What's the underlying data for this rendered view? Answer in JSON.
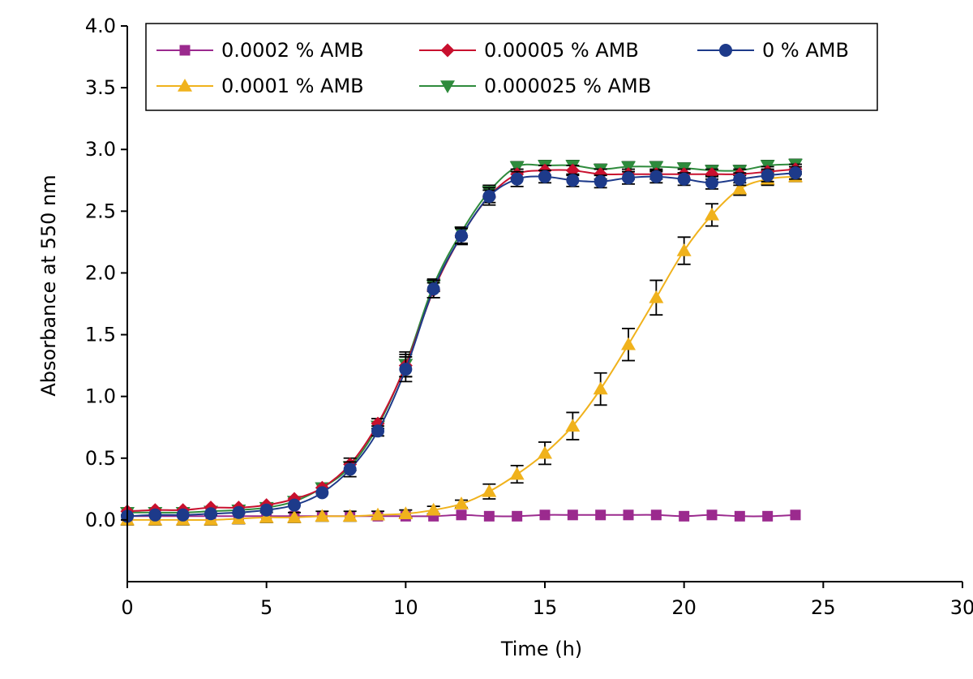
{
  "chart_data": {
    "type": "line",
    "xlabel": "Time (h)",
    "ylabel": "Absorbance at 550 nm",
    "xlim": [
      0,
      30
    ],
    "ylim": [
      -0.5,
      4.0
    ],
    "xticks": [
      "0",
      "5",
      "10",
      "15",
      "20",
      "25",
      "30"
    ],
    "yticks": [
      "0.0",
      "0.5",
      "1.0",
      "1.5",
      "2.0",
      "2.5",
      "3.0",
      "3.5",
      "4.0"
    ],
    "grid": false,
    "legend": "top",
    "x": [
      0,
      1,
      2,
      3,
      4,
      5,
      6,
      7,
      8,
      9,
      10,
      11,
      12,
      13,
      14,
      15,
      16,
      17,
      18,
      19,
      20,
      21,
      22,
      23,
      24
    ],
    "series": [
      {
        "name": "0.0002 % AMB",
        "color": "#9b2a8e",
        "marker": "square",
        "values": [
          0.03,
          0.03,
          0.03,
          0.03,
          0.03,
          0.03,
          0.03,
          0.03,
          0.03,
          0.03,
          0.03,
          0.03,
          0.04,
          0.03,
          0.03,
          0.04,
          0.04,
          0.04,
          0.04,
          0.04,
          0.03,
          0.04,
          0.03,
          0.03,
          0.04
        ],
        "errors": [
          0,
          0,
          0,
          0,
          0,
          0,
          0,
          0,
          0,
          0,
          0,
          0,
          0,
          0,
          0,
          0,
          0,
          0,
          0,
          0,
          0,
          0,
          0,
          0,
          0
        ]
      },
      {
        "name": "0.00005 % AMB",
        "color": "#c8102e",
        "marker": "diamond",
        "values": [
          0.07,
          0.08,
          0.08,
          0.1,
          0.1,
          0.12,
          0.17,
          0.26,
          0.45,
          0.78,
          1.25,
          1.86,
          2.3,
          2.62,
          2.8,
          2.83,
          2.83,
          2.8,
          2.8,
          2.8,
          2.8,
          2.8,
          2.8,
          2.82,
          2.84
        ],
        "errors": [
          0,
          0,
          0,
          0,
          0,
          0,
          0,
          0,
          0.05,
          0.04,
          0.09,
          0.06,
          0.07,
          0.05,
          0.04,
          0.04,
          0.04,
          0.04,
          0.04,
          0.04,
          0.04,
          0.04,
          0.04,
          0.04,
          0.04
        ]
      },
      {
        "name": "0 % AMB",
        "color": "#1d3a8a",
        "marker": "circle",
        "values": [
          0.03,
          0.04,
          0.04,
          0.05,
          0.06,
          0.08,
          0.12,
          0.22,
          0.41,
          0.72,
          1.22,
          1.87,
          2.3,
          2.62,
          2.76,
          2.78,
          2.75,
          2.74,
          2.77,
          2.78,
          2.76,
          2.73,
          2.76,
          2.79,
          2.81
        ],
        "errors": [
          0,
          0,
          0,
          0,
          0,
          0,
          0,
          0,
          0.06,
          0.04,
          0.1,
          0.07,
          0.06,
          0.07,
          0.06,
          0.05,
          0.05,
          0.05,
          0.05,
          0.05,
          0.05,
          0.05,
          0.05,
          0.05,
          0.05
        ]
      },
      {
        "name": "0.0001 % AMB",
        "color": "#f0b21c",
        "marker": "triangle-up",
        "values": [
          0.0,
          0.0,
          0.0,
          0.0,
          0.01,
          0.02,
          0.02,
          0.03,
          0.03,
          0.04,
          0.05,
          0.08,
          0.13,
          0.23,
          0.37,
          0.54,
          0.76,
          1.06,
          1.42,
          1.8,
          2.18,
          2.47,
          2.68,
          2.76,
          2.78
        ],
        "errors": [
          0.04,
          0.04,
          0.04,
          0.04,
          0.04,
          0.04,
          0.04,
          0.04,
          0.04,
          0.03,
          0.03,
          0.03,
          0.03,
          0.06,
          0.07,
          0.09,
          0.11,
          0.13,
          0.13,
          0.14,
          0.11,
          0.09,
          0.05,
          0.05,
          0.04
        ]
      },
      {
        "name": "0.000025 % AMB",
        "color": "#2e8b3c",
        "marker": "triangle-down",
        "values": [
          0.06,
          0.06,
          0.06,
          0.07,
          0.08,
          0.1,
          0.15,
          0.26,
          0.43,
          0.76,
          1.26,
          1.9,
          2.33,
          2.66,
          2.86,
          2.87,
          2.87,
          2.84,
          2.86,
          2.86,
          2.85,
          2.83,
          2.83,
          2.87,
          2.88
        ],
        "errors": [
          0,
          0,
          0,
          0,
          0,
          0,
          0,
          0,
          0,
          0,
          0.1,
          0.05,
          0.04,
          0.05,
          0.04,
          0.04,
          0.04,
          0.04,
          0.04,
          0.04,
          0.04,
          0.04,
          0.04,
          0.04,
          0.04
        ]
      }
    ]
  }
}
